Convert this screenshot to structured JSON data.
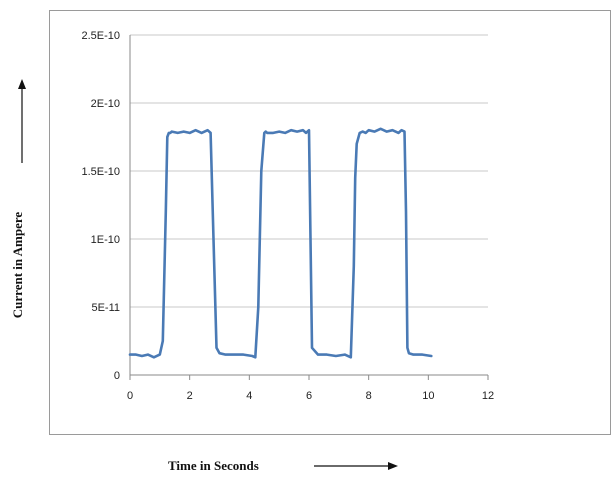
{
  "chart_data": {
    "type": "line",
    "title": "",
    "xlabel": "Time in Seconds",
    "ylabel": "Current in Ampere",
    "xlim": [
      0,
      12
    ],
    "ylim": [
      0,
      2.5e-10
    ],
    "x_ticks": [
      0,
      2,
      4,
      6,
      8,
      10,
      12
    ],
    "x_tick_labels": [
      "0",
      "2",
      "4",
      "6",
      "8",
      "10",
      "12"
    ],
    "y_ticks": [
      0,
      5e-11,
      1e-10,
      1.5e-10,
      2e-10,
      2.5e-10
    ],
    "y_tick_labels": [
      "0",
      "5E-11",
      "1E-10",
      "1.5E-10",
      "2E-10",
      "2.5E-10"
    ],
    "grid": true,
    "legend": "none",
    "series_color": "#4a7ab5",
    "series": [
      {
        "x": [
          0,
          0.2,
          0.4,
          0.6,
          0.8,
          1.0,
          1.1,
          1.2,
          1.25,
          1.3,
          1.35,
          1.4,
          1.6,
          1.8,
          2.0,
          2.2,
          2.4,
          2.6,
          2.7,
          2.8,
          2.9,
          3.0,
          3.2,
          3.5,
          3.8,
          4.1,
          4.2,
          4.3,
          4.4,
          4.5,
          4.55,
          4.6,
          4.8,
          5.0,
          5.2,
          5.4,
          5.6,
          5.8,
          5.9,
          6.0,
          6.05,
          6.1,
          6.3,
          6.6,
          6.9,
          7.2,
          7.4,
          7.5,
          7.55,
          7.6,
          7.7,
          7.8,
          7.9,
          8.0,
          8.2,
          8.4,
          8.6,
          8.8,
          9.0,
          9.1,
          9.2,
          9.25,
          9.3,
          9.35,
          9.5,
          9.8,
          10.1
        ],
        "y": [
          1.5e-11,
          1.5e-11,
          1.4e-11,
          1.5e-11,
          1.3e-11,
          1.5e-11,
          2.5e-11,
          1.2e-10,
          1.75e-10,
          1.78e-10,
          1.78e-10,
          1.79e-10,
          1.78e-10,
          1.79e-10,
          1.78e-10,
          1.8e-10,
          1.78e-10,
          1.8e-10,
          1.78e-10,
          1e-10,
          2e-11,
          1.6e-11,
          1.5e-11,
          1.5e-11,
          1.5e-11,
          1.4e-11,
          1.3e-11,
          5e-11,
          1.5e-10,
          1.78e-10,
          1.79e-10,
          1.78e-10,
          1.78e-10,
          1.79e-10,
          1.78e-10,
          1.8e-10,
          1.79e-10,
          1.8e-10,
          1.78e-10,
          1.8e-10,
          1e-10,
          2e-11,
          1.5e-11,
          1.5e-11,
          1.4e-11,
          1.5e-11,
          1.3e-11,
          8e-11,
          1.45e-10,
          1.7e-10,
          1.78e-10,
          1.79e-10,
          1.78e-10,
          1.8e-10,
          1.79e-10,
          1.81e-10,
          1.79e-10,
          1.8e-10,
          1.78e-10,
          1.8e-10,
          1.79e-10,
          1.2e-10,
          2e-11,
          1.6e-11,
          1.5e-11,
          1.5e-11,
          1.4e-11
        ]
      }
    ]
  }
}
